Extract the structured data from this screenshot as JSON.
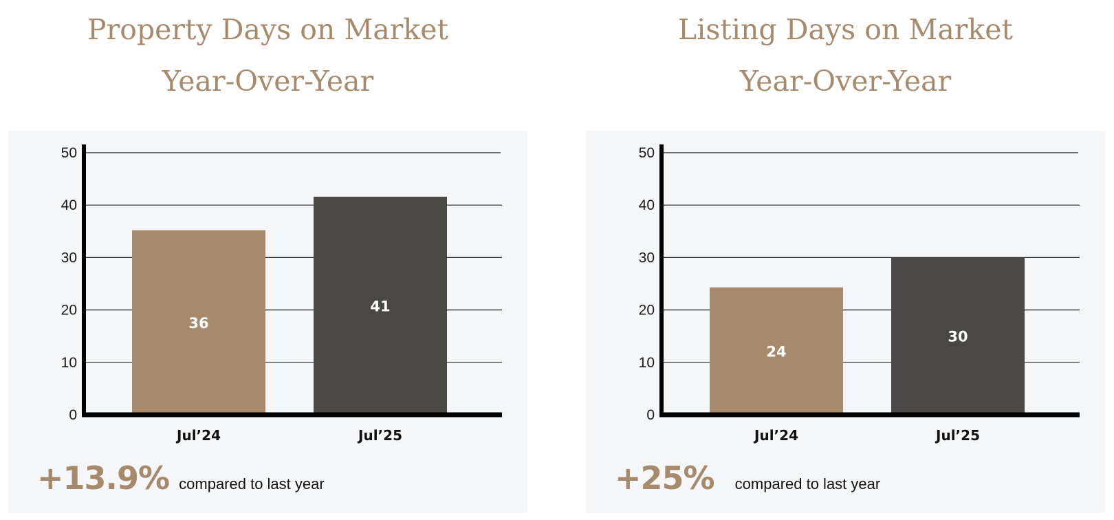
{
  "colors": {
    "accent": "#a68a6b",
    "bar_previous": "#a68a6b",
    "bar_current": "#4a4844",
    "card_bg": "#f5f6f8",
    "axis": "#000000",
    "grid": "#222222"
  },
  "panels": [
    {
      "title_line1": "Property Days on Market",
      "title_line2": "Year-Over-Year",
      "change_pct": "+13.9%",
      "change_text": "compared to last year"
    },
    {
      "title_line1": "Listing Days on Market",
      "title_line2": "Year-Over-Year",
      "change_pct": "+25%",
      "change_text": "compared to last year"
    }
  ],
  "chart_data": [
    {
      "type": "bar",
      "title": "Property Days on Market Year-Over-Year",
      "categories": [
        "Jul’24",
        "Jul’25"
      ],
      "values": [
        36,
        41
      ],
      "bar_heights": [
        35.2,
        41.6
      ],
      "data_labels": [
        "36",
        "41"
      ],
      "ylim": [
        0,
        50
      ],
      "yticks": [
        0,
        10,
        20,
        30,
        40,
        50
      ],
      "grid": true,
      "legend": "none"
    },
    {
      "type": "bar",
      "title": "Listing Days on Market Year-Over-Year",
      "categories": [
        "Jul’24",
        "Jul’25"
      ],
      "values": [
        24,
        30
      ],
      "bar_heights": [
        24.3,
        30
      ],
      "data_labels": [
        "24",
        "30"
      ],
      "ylim": [
        0,
        50
      ],
      "yticks": [
        0,
        10,
        20,
        30,
        40,
        50
      ],
      "grid": true,
      "legend": "none"
    }
  ]
}
